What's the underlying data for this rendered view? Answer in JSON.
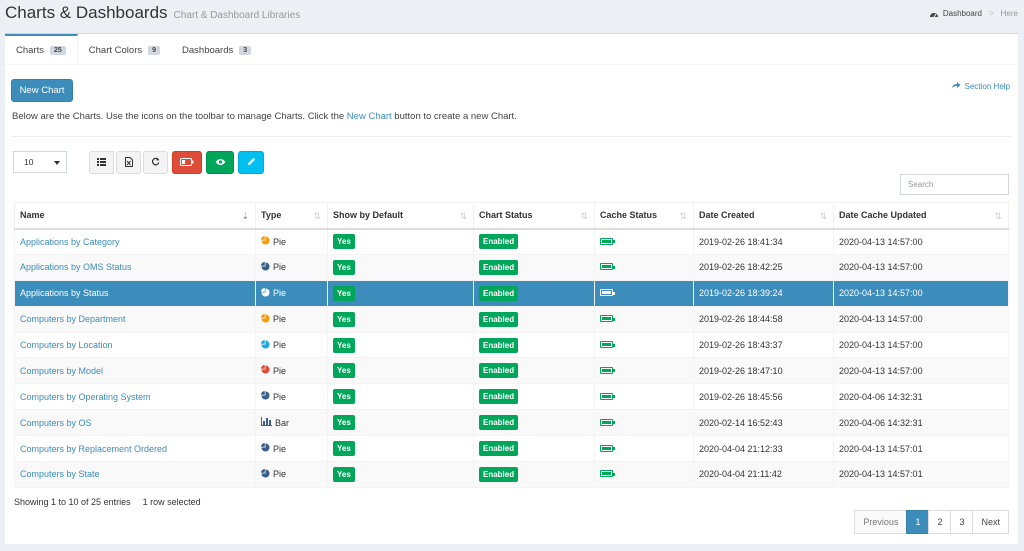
{
  "header": {
    "title": "Charts & Dashboards",
    "subtitle": "Chart & Dashboard Libraries"
  },
  "breadcrumb": {
    "home": "Dashboard",
    "sep": ">",
    "current": "Here"
  },
  "tabs": [
    {
      "label": "Charts",
      "count": "25"
    },
    {
      "label": "Chart Colors",
      "count": "9"
    },
    {
      "label": "Dashboards",
      "count": "3"
    }
  ],
  "new_chart_label": "New Chart",
  "section_help_label": "Section Help",
  "help": {
    "pre": "Below are the Charts. Use the icons on the toolbar to manage Charts. Click the ",
    "link": "New Chart",
    "post": " button to create a new Chart."
  },
  "length_value": "10",
  "search_placeholder": "Search",
  "columns": [
    "Name",
    "Type",
    "Show by Default",
    "Chart Status",
    "Cache Status",
    "Date Created",
    "Date Cache Updated"
  ],
  "rows": [
    {
      "name": "Applications by Category",
      "type": "Pie",
      "icon": "pie-orange",
      "show": "Yes",
      "status": "Enabled",
      "created": "2019-02-26 18:41:34",
      "updated": "2020-04-13 14:57:00"
    },
    {
      "name": "Applications by OMS Status",
      "type": "Pie",
      "icon": "pie-dark",
      "show": "Yes",
      "status": "Enabled",
      "created": "2019-02-26 18:42:25",
      "updated": "2020-04-13 14:57:00"
    },
    {
      "name": "Applications by Status",
      "type": "Pie",
      "icon": "pie-white",
      "show": "Yes",
      "status": "Enabled",
      "created": "2019-02-26 18:39:24",
      "updated": "2020-04-13 14:57:00"
    },
    {
      "name": "Computers by Department",
      "type": "Pie",
      "icon": "pie-orange",
      "show": "Yes",
      "status": "Enabled",
      "created": "2019-02-26 18:44:58",
      "updated": "2020-04-13 14:57:00"
    },
    {
      "name": "Computers by Location",
      "type": "Pie",
      "icon": "pie-cyan",
      "show": "Yes",
      "status": "Enabled",
      "created": "2019-02-26 18:43:37",
      "updated": "2020-04-13 14:57:00"
    },
    {
      "name": "Computers by Model",
      "type": "Pie",
      "icon": "pie-red",
      "show": "Yes",
      "status": "Enabled",
      "created": "2019-02-26 18:47:10",
      "updated": "2020-04-13 14:57:00"
    },
    {
      "name": "Computers by Operating System",
      "type": "Pie",
      "icon": "pie-dark",
      "show": "Yes",
      "status": "Enabled",
      "created": "2019-02-26 18:45:56",
      "updated": "2020-04-06 14:32:31"
    },
    {
      "name": "Computers by OS",
      "type": "Bar",
      "icon": "bar-chart",
      "show": "Yes",
      "status": "Enabled",
      "created": "2020-02-14 16:52:43",
      "updated": "2020-04-06 14:32:31"
    },
    {
      "name": "Computers by Replacement Ordered",
      "type": "Pie",
      "icon": "pie-dark",
      "show": "Yes",
      "status": "Enabled",
      "created": "2020-04-04 21:12:33",
      "updated": "2020-04-13 14:57:01"
    },
    {
      "name": "Computers by State",
      "type": "Pie",
      "icon": "pie-dark",
      "show": "Yes",
      "status": "Enabled",
      "created": "2020-04-04 21:11:42",
      "updated": "2020-04-13 14:57:01"
    }
  ],
  "selected_row": "Applications by Status",
  "info": {
    "showing": "Showing 1 to 10 of 25 entries",
    "selected": "1 row selected"
  },
  "pagination": {
    "previous": "Previous",
    "pages": [
      "1",
      "2",
      "3"
    ],
    "next": "Next",
    "active": "1"
  },
  "colors": {
    "primary": "#3c8dbc",
    "success": "#00a65a",
    "danger": "#dd4b39",
    "info": "#00c0ef",
    "warning": "#f39c12"
  }
}
